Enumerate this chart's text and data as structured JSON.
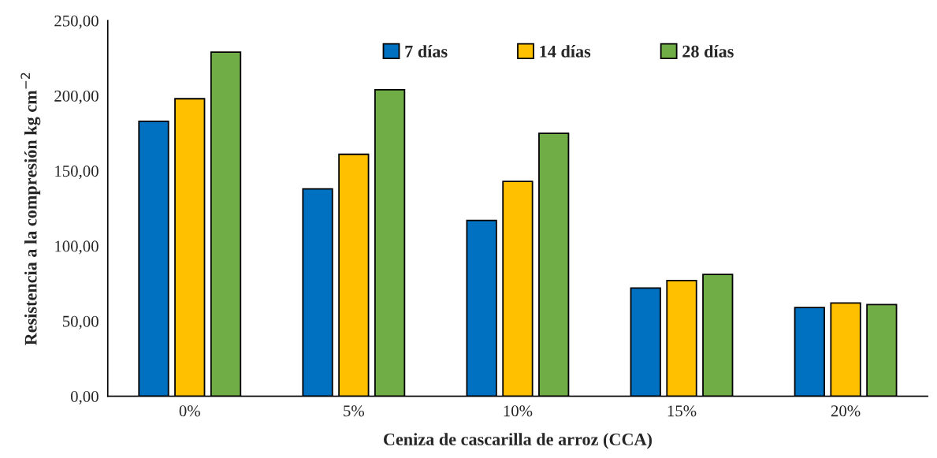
{
  "chart_data": {
    "type": "bar",
    "xlabel": "Ceniza de cascarilla de arroz (CCA)",
    "ylabel": "Resistencia a la compresión kg cm$^{−2}$",
    "categories": [
      "0%",
      "5%",
      "10%",
      "15%",
      "20%"
    ],
    "series": [
      {
        "name": "7 días",
        "color": "#0070c0",
        "values": [
          183,
          138,
          117,
          72,
          59
        ]
      },
      {
        "name": "14 días",
        "color": "#ffc000",
        "values": [
          198,
          161,
          143,
          77,
          62
        ]
      },
      {
        "name": "28 días",
        "color": "#70ad47",
        "values": [
          229,
          204,
          175,
          81,
          61
        ]
      }
    ],
    "ylim": [
      0,
      250
    ],
    "yticks": [
      {
        "value": 0,
        "label": "0,00"
      },
      {
        "value": 50,
        "label": "50,00"
      },
      {
        "value": 100,
        "label": "100,00"
      },
      {
        "value": 150,
        "label": "150,00"
      },
      {
        "value": 200,
        "label": "200,00"
      },
      {
        "value": 250,
        "label": "250,00"
      }
    ],
    "grid": false,
    "legend": "top"
  }
}
